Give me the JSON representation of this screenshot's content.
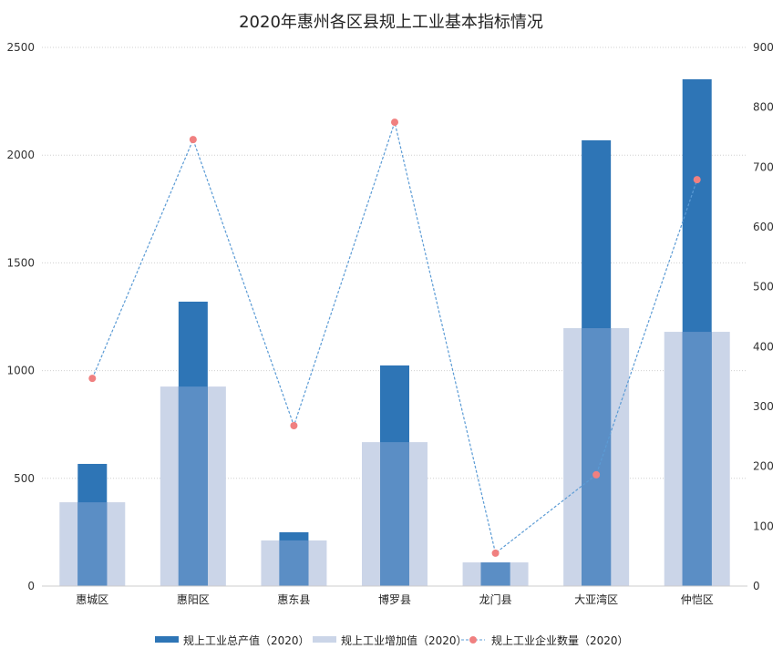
{
  "chart_data": {
    "type": "bar+line",
    "title": "2020年惠州各区县规上工业基本指标情况",
    "categories": [
      "惠城区",
      "惠阳区",
      "惠东县",
      "博罗县",
      "龙门县",
      "大亚湾区",
      "仲恺区"
    ],
    "series": [
      {
        "name": "规上工业总产值（2020）",
        "type": "bar",
        "axis": "left",
        "color": "#2e75b6",
        "values": [
          567,
          1320,
          250,
          1024,
          110,
          2069,
          2352
        ]
      },
      {
        "name": "规上工业增加值（2020）",
        "type": "bar",
        "axis": "left",
        "color": "#cbd5e8",
        "values": [
          389,
          926,
          212,
          668,
          110,
          1197,
          1180
        ]
      },
      {
        "name": "规上工业企业数量（2020）",
        "type": "line",
        "axis": "right",
        "color": "#5b9bd5",
        "marker_color": "#f08080",
        "values": [
          347,
          746,
          268,
          775,
          55,
          186,
          679
        ]
      }
    ],
    "overlap_color": "#5b8ec5",
    "left_axis": {
      "range": [
        0,
        2500
      ],
      "ticks": [
        "0",
        "500",
        "1000",
        "1500",
        "2000",
        "2500"
      ]
    },
    "right_axis": {
      "range": [
        0,
        900
      ],
      "ticks": [
        "0",
        "100",
        "200",
        "300",
        "400",
        "500",
        "600",
        "700",
        "800",
        "900"
      ]
    },
    "grid": true,
    "legend": "bottom"
  }
}
